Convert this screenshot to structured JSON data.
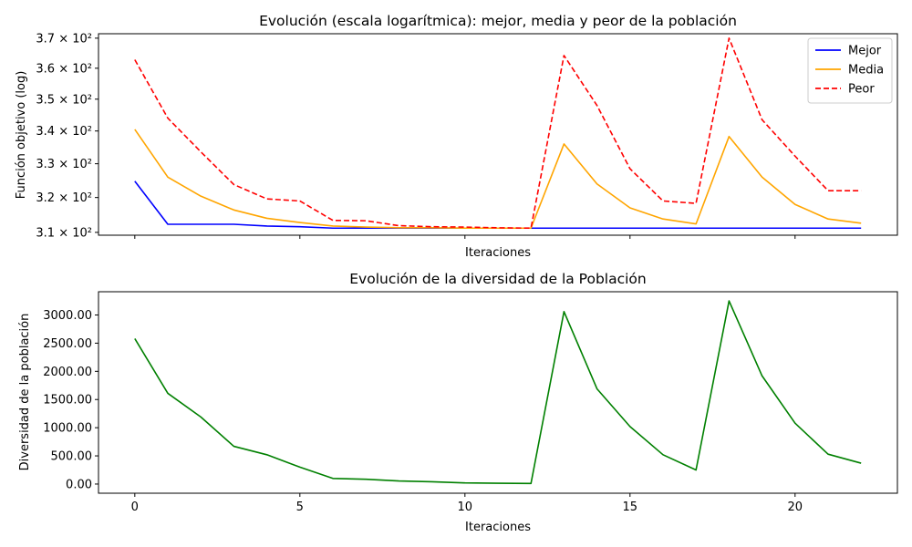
{
  "chart_data": [
    {
      "type": "line",
      "title": "Evolución (escala logarítmica): mejor, media y peor de la población",
      "xlabel": "Iteraciones",
      "ylabel": "Función objetivo (log)",
      "yscale": "log",
      "xlim": [
        -1.1,
        23.1
      ],
      "ylim": [
        309.2,
        371.5
      ],
      "x": [
        0,
        1,
        2,
        3,
        4,
        5,
        6,
        7,
        8,
        9,
        10,
        11,
        12,
        13,
        14,
        15,
        16,
        17,
        18,
        19,
        20,
        21,
        22
      ],
      "y_ticks": [
        {
          "value": 310,
          "label": "3.1 × 10²"
        },
        {
          "value": 320,
          "label": "3.2 × 10²"
        },
        {
          "value": 330,
          "label": "3.3 × 10²"
        },
        {
          "value": 340,
          "label": "3.4 × 10²"
        },
        {
          "value": 350,
          "label": "3.5 × 10²"
        },
        {
          "value": 360,
          "label": "3.6 × 10²"
        },
        {
          "value": 370,
          "label": "3.7 × 10²"
        }
      ],
      "x_ticks": [
        0,
        5,
        10,
        15,
        20
      ],
      "x_tick_labels_visible": false,
      "legend": {
        "placement": "top-right",
        "entries": [
          {
            "name": "Mejor",
            "color": "#0000ff",
            "style": "solid"
          },
          {
            "name": "Media",
            "color": "#ffa500",
            "style": "solid"
          },
          {
            "name": "Peor",
            "color": "#ff0000",
            "style": "dashed"
          }
        ]
      },
      "series": [
        {
          "name": "Mejor",
          "color": "#0000ff",
          "style": "solid",
          "values": [
            324.8,
            312.3,
            312.3,
            312.3,
            311.8,
            311.6,
            311.2,
            311.2,
            311.2,
            311.2,
            311.2,
            311.2,
            311.2,
            311.2,
            311.2,
            311.2,
            311.2,
            311.2,
            311.2,
            311.2,
            311.2,
            311.2,
            311.2
          ]
        },
        {
          "name": "Media",
          "color": "#ffa500",
          "style": "solid",
          "values": [
            340.5,
            326.0,
            320.4,
            316.4,
            314.0,
            312.8,
            311.8,
            311.5,
            311.3,
            311.3,
            311.2,
            311.2,
            311.2,
            336.0,
            324.0,
            317.0,
            313.8,
            312.4,
            338.3,
            326.0,
            318.0,
            313.8,
            312.6
          ]
        },
        {
          "name": "Peor",
          "color": "#ff0000",
          "style": "dashed",
          "values": [
            362.8,
            344.0,
            333.6,
            323.8,
            319.6,
            319.0,
            313.4,
            313.3,
            311.9,
            311.6,
            311.5,
            311.3,
            311.2,
            364.2,
            348.0,
            328.5,
            319.0,
            318.3,
            370.0,
            343.5,
            332.3,
            322.0,
            322.0
          ]
        }
      ]
    },
    {
      "type": "line",
      "title": "Evolución de la diversidad de la Población",
      "xlabel": "Iteraciones",
      "ylabel": "Diversidad de la población",
      "xlim": [
        -1.1,
        23.1
      ],
      "ylim": [
        -162.5,
        3412.5
      ],
      "x": [
        0,
        1,
        2,
        3,
        4,
        5,
        6,
        7,
        8,
        9,
        10,
        11,
        12,
        13,
        14,
        15,
        16,
        17,
        18,
        19,
        20,
        21,
        22
      ],
      "y_ticks": [
        {
          "value": 0,
          "label": "0.00"
        },
        {
          "value": 500,
          "label": "500.00"
        },
        {
          "value": 1000,
          "label": "1000.00"
        },
        {
          "value": 1500,
          "label": "1500.00"
        },
        {
          "value": 2000,
          "label": "2000.00"
        },
        {
          "value": 2500,
          "label": "2500.00"
        },
        {
          "value": 3000,
          "label": "3000.00"
        }
      ],
      "x_ticks": [
        0,
        5,
        10,
        15,
        20
      ],
      "series": [
        {
          "color": "#008000",
          "style": "solid",
          "values": [
            2580,
            1610,
            1190,
            670,
            520,
            300,
            100,
            85,
            55,
            40,
            20,
            15,
            10,
            3060,
            1690,
            1020,
            520,
            250,
            3250,
            1920,
            1080,
            530,
            370
          ]
        }
      ]
    }
  ]
}
